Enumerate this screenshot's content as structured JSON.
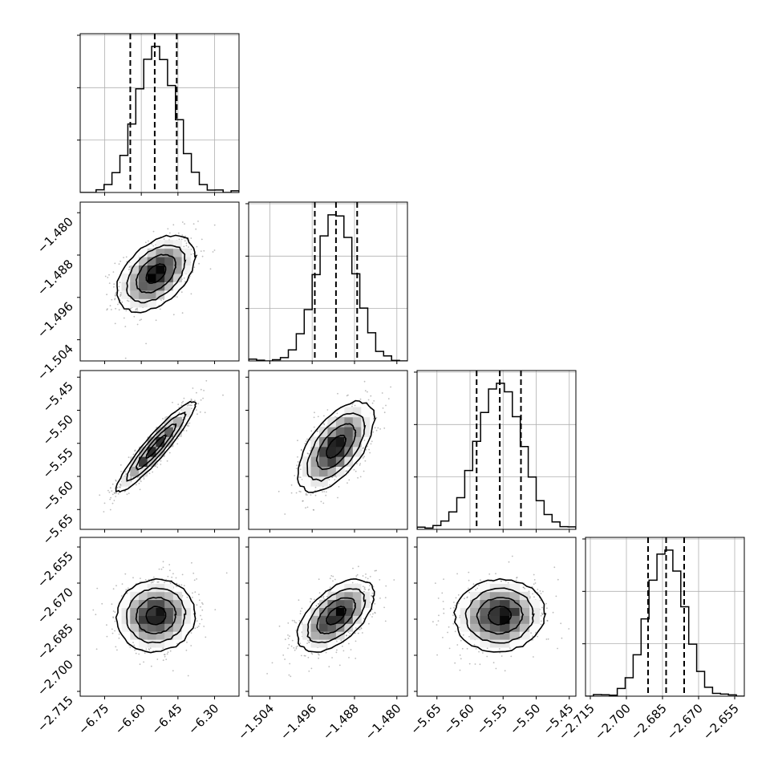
{
  "chart_data": {
    "type": "corner",
    "grid": true,
    "params": [
      {
        "range": [
          -6.85,
          -6.2
        ],
        "ticks": [
          -6.75,
          -6.6,
          -6.45,
          -6.3
        ],
        "tick_labels": [
          "−6.75",
          "−6.60",
          "−6.45",
          "−6.30"
        ],
        "mean": -6.54,
        "sd": 0.08,
        "quantiles": [
          -6.645,
          -6.545,
          -6.455
        ],
        "hist_ticks": [
          0.33,
          0.66,
          0.99
        ]
      },
      {
        "range": [
          -1.508,
          -1.478
        ],
        "ticks": [
          -1.504,
          -1.496,
          -1.488,
          -1.48
        ],
        "tick_labels": [
          "−1.504",
          "−1.496",
          "−1.488",
          "−1.480"
        ],
        "mean": -1.4915,
        "sd": 0.0036,
        "quantiles": [
          -1.4955,
          -1.4915,
          -1.4875
        ],
        "hist_ticks": [
          0.33,
          0.66,
          0.99
        ]
      },
      {
        "range": [
          -5.68,
          -5.44
        ],
        "ticks": [
          -5.65,
          -5.6,
          -5.55,
          -5.5,
          -5.45
        ],
        "tick_labels": [
          "−5.65",
          "−5.60",
          "−5.55",
          "−5.50",
          "−5.45"
        ],
        "mean": -5.555,
        "sd": 0.034,
        "quantiles": [
          -5.59,
          -5.555,
          -5.523
        ],
        "hist_ticks": [
          0.33,
          0.66,
          0.99
        ]
      },
      {
        "range": [
          -2.717,
          -2.651
        ],
        "ticks": [
          -2.715,
          -2.7,
          -2.685,
          -2.67,
          -2.655
        ],
        "tick_labels": [
          "−2.715",
          "−2.700",
          "−2.685",
          "−2.670",
          "−2.655"
        ],
        "mean": -2.6835,
        "sd": 0.0075,
        "quantiles": [
          -2.691,
          -2.6835,
          -2.676
        ],
        "hist_ticks": [
          0.33,
          0.66,
          0.99
        ]
      }
    ],
    "correlations": [
      {
        "i": 1,
        "j": 0,
        "rho": 0.45
      },
      {
        "i": 2,
        "j": 0,
        "rho": 0.93
      },
      {
        "i": 2,
        "j": 1,
        "rho": 0.6
      },
      {
        "i": 3,
        "j": 0,
        "rho": 0.05
      },
      {
        "i": 3,
        "j": 1,
        "rho": 0.55
      },
      {
        "i": 3,
        "j": 2,
        "rho": 0.05
      }
    ],
    "contour_levels_sigma": [
      0.5,
      1.0,
      1.5,
      2.0
    ]
  }
}
